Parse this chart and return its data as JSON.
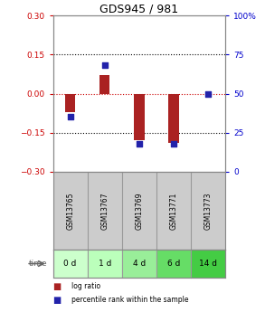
{
  "title": "GDS945 / 981",
  "samples": [
    "GSM13765",
    "GSM13767",
    "GSM13769",
    "GSM13771",
    "GSM13773"
  ],
  "time_labels": [
    "0 d",
    "1 d",
    "4 d",
    "6 d",
    "14 d"
  ],
  "log_ratios": [
    -0.07,
    0.07,
    -0.18,
    -0.19,
    0.0
  ],
  "percentile_ranks": [
    35,
    68,
    18,
    18,
    50
  ],
  "ylim_left": [
    -0.3,
    0.3
  ],
  "ylim_right": [
    0,
    100
  ],
  "yticks_left": [
    -0.3,
    -0.15,
    0,
    0.15,
    0.3
  ],
  "yticks_right": [
    0,
    25,
    50,
    75,
    100
  ],
  "bar_color": "#aa2222",
  "dot_color": "#2222aa",
  "bar_width": 0.3,
  "bg_color": "#ffffff",
  "plot_bg": "#ffffff",
  "gsm_bg": "#cccccc",
  "time_bg_colors": [
    "#ccffcc",
    "#bbffbb",
    "#99ee99",
    "#66dd66",
    "#44cc44"
  ],
  "dotted_line_color": "#000000",
  "zero_line_color": "#cc0000",
  "legend_log_ratio": "log ratio",
  "legend_percentile": "percentile rank within the sample",
  "left_tick_color": "#cc0000",
  "right_tick_color": "#0000cc"
}
